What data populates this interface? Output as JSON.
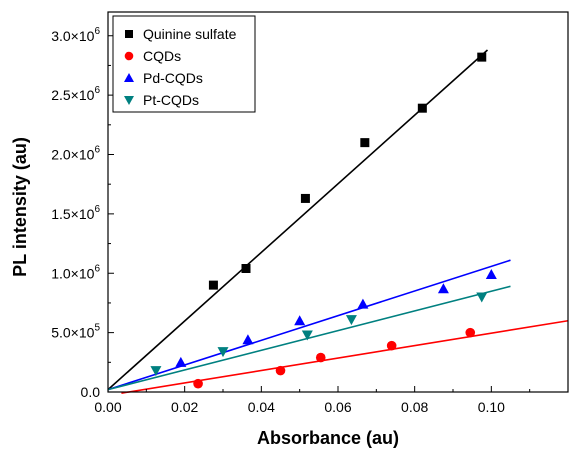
{
  "chart_data": {
    "type": "scatter",
    "xlabel": "Absorbance (au)",
    "ylabel": "PL intensity (au)",
    "xlim": [
      0,
      0.12
    ],
    "ylim": [
      0,
      3200000
    ],
    "x_ticks": [
      {
        "value": 0.0,
        "label": "0.00"
      },
      {
        "value": 0.02,
        "label": "0.02"
      },
      {
        "value": 0.04,
        "label": "0.04"
      },
      {
        "value": 0.06,
        "label": "0.06"
      },
      {
        "value": 0.08,
        "label": "0.08"
      },
      {
        "value": 0.1,
        "label": "0.10"
      }
    ],
    "y_ticks": [
      {
        "value": 0,
        "label": "0.0",
        "base": "0.0",
        "exp": ""
      },
      {
        "value": 500000,
        "label": "5.0×10⁵",
        "base": "5.0×10",
        "exp": "5"
      },
      {
        "value": 1000000,
        "label": "1.0×10⁶",
        "base": "1.0×10",
        "exp": "6"
      },
      {
        "value": 1500000,
        "label": "1.5×10⁶",
        "base": "1.5×10",
        "exp": "6"
      },
      {
        "value": 2000000,
        "label": "2.0×10⁶",
        "base": "2.0×10",
        "exp": "6"
      },
      {
        "value": 2500000,
        "label": "2.5×10⁶",
        "base": "2.5×10",
        "exp": "6"
      },
      {
        "value": 3000000,
        "label": "3.0×10⁶",
        "base": "3.0×10",
        "exp": "6"
      }
    ],
    "legend_position": "top-left",
    "grid": false,
    "series": [
      {
        "name": "Quinine sulfate",
        "marker": "square",
        "color": "#000000",
        "points": [
          [
            0.0275,
            900000
          ],
          [
            0.036,
            1040000
          ],
          [
            0.0515,
            1630000
          ],
          [
            0.067,
            2100000
          ],
          [
            0.082,
            2390000
          ],
          [
            0.0975,
            2820000
          ]
        ],
        "fit": [
          [
            0.0,
            20000
          ],
          [
            0.099,
            2880000
          ]
        ]
      },
      {
        "name": "CQDs",
        "marker": "circle",
        "color": "#ff0000",
        "points": [
          [
            0.0235,
            70000
          ],
          [
            0.045,
            180000
          ],
          [
            0.0555,
            290000
          ],
          [
            0.074,
            390000
          ],
          [
            0.0945,
            500000
          ]
        ],
        "fit": [
          [
            0.0035,
            -10000
          ],
          [
            0.12,
            600000
          ]
        ]
      },
      {
        "name": "Pd-CQDs",
        "marker": "triangle-up",
        "color": "#0000ff",
        "points": [
          [
            0.019,
            250000
          ],
          [
            0.0365,
            440000
          ],
          [
            0.05,
            600000
          ],
          [
            0.0665,
            740000
          ],
          [
            0.0875,
            870000
          ],
          [
            0.1,
            990000
          ]
        ],
        "fit": [
          [
            0.0,
            20000
          ],
          [
            0.105,
            1110000
          ]
        ]
      },
      {
        "name": "Pt-CQDs",
        "marker": "triangle-down",
        "color": "#008080",
        "points": [
          [
            0.0125,
            180000
          ],
          [
            0.03,
            340000
          ],
          [
            0.052,
            480000
          ],
          [
            0.0635,
            610000
          ],
          [
            0.0975,
            800000
          ]
        ],
        "fit": [
          [
            0.0,
            20000
          ],
          [
            0.105,
            890000
          ]
        ]
      }
    ]
  }
}
